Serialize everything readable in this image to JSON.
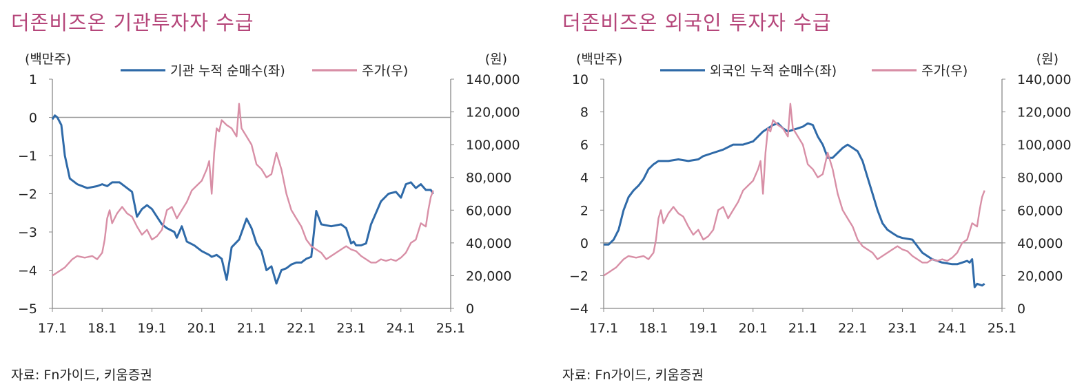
{
  "colors": {
    "title": "#b5467a",
    "flow_line": "#2f6aa8",
    "price_line": "#d88fa6",
    "axis": "#888888",
    "zero_line": "#999999"
  },
  "chart_data": [
    {
      "type": "line",
      "title": "더존비즈온 기관투자자 수급",
      "source": "자료: Fn가이드, 키움증권",
      "left_unit": "(백만주)",
      "right_unit": "(원)",
      "x_ticks": [
        "17.1",
        "18.1",
        "19.1",
        "20.1",
        "21.1",
        "22.1",
        "23.1",
        "24.1",
        "25.1"
      ],
      "xlim": [
        2017.0,
        2025.0
      ],
      "ylim_left": [
        -5,
        1
      ],
      "yticks_left": [
        "1",
        "0",
        "−1",
        "−2",
        "−3",
        "−4",
        "−5"
      ],
      "ylim_right": [
        0,
        140000
      ],
      "yticks_right": [
        "140,000",
        "120,000",
        "100,000",
        "80,000",
        "60,000",
        "40,000",
        "20,000",
        "0"
      ],
      "reference_line_left": 0,
      "legend_position": "top",
      "series": [
        {
          "name": "기관 누적 순매수(좌)",
          "axis": "left",
          "color": "#2f6aa8",
          "x": [
            2017.0,
            2017.05,
            2017.1,
            2017.18,
            2017.25,
            2017.35,
            2017.5,
            2017.7,
            2017.9,
            2018.0,
            2018.1,
            2018.2,
            2018.35,
            2018.5,
            2018.6,
            2018.7,
            2018.8,
            2018.9,
            2019.0,
            2019.1,
            2019.2,
            2019.3,
            2019.45,
            2019.5,
            2019.6,
            2019.7,
            2019.85,
            2020.0,
            2020.15,
            2020.2,
            2020.3,
            2020.4,
            2020.5,
            2020.6,
            2020.75,
            2020.9,
            2021.0,
            2021.1,
            2021.2,
            2021.3,
            2021.4,
            2021.5,
            2021.6,
            2021.7,
            2021.8,
            2021.9,
            2022.0,
            2022.05,
            2022.1,
            2022.2,
            2022.3,
            2022.4,
            2022.6,
            2022.8,
            2022.9,
            2023.0,
            2023.05,
            2023.1,
            2023.2,
            2023.3,
            2023.4,
            2023.5,
            2023.6,
            2023.75,
            2023.9,
            2024.0,
            2024.1,
            2024.2,
            2024.3,
            2024.4,
            2024.5,
            2024.6,
            2024.65
          ],
          "y": [
            -0.05,
            0.05,
            0.0,
            -0.2,
            -1.0,
            -1.6,
            -1.75,
            -1.85,
            -1.8,
            -1.75,
            -1.8,
            -1.7,
            -1.7,
            -1.85,
            -1.95,
            -2.6,
            -2.4,
            -2.3,
            -2.4,
            -2.6,
            -2.8,
            -2.9,
            -3.0,
            -3.15,
            -2.85,
            -3.25,
            -3.35,
            -3.5,
            -3.6,
            -3.65,
            -3.6,
            -3.7,
            -4.25,
            -3.4,
            -3.2,
            -2.65,
            -2.9,
            -3.3,
            -3.5,
            -4.0,
            -3.9,
            -4.35,
            -4.0,
            -3.95,
            -3.85,
            -3.8,
            -3.8,
            -3.75,
            -3.7,
            -3.65,
            -2.45,
            -2.8,
            -2.85,
            -2.8,
            -2.9,
            -3.3,
            -3.25,
            -3.35,
            -3.35,
            -3.3,
            -2.8,
            -2.5,
            -2.2,
            -2.0,
            -1.95,
            -2.1,
            -1.75,
            -1.7,
            -1.85,
            -1.75,
            -1.9,
            -1.9,
            -2.0
          ]
        },
        {
          "name": "주가(우)",
          "axis": "right",
          "color": "#d88fa6",
          "x": [
            2017.0,
            2017.1,
            2017.25,
            2017.4,
            2017.5,
            2017.65,
            2017.8,
            2017.9,
            2018.0,
            2018.05,
            2018.1,
            2018.15,
            2018.2,
            2018.3,
            2018.4,
            2018.5,
            2018.6,
            2018.7,
            2018.8,
            2018.9,
            2019.0,
            2019.1,
            2019.2,
            2019.3,
            2019.4,
            2019.5,
            2019.6,
            2019.7,
            2019.8,
            2019.9,
            2020.0,
            2020.1,
            2020.15,
            2020.2,
            2020.25,
            2020.3,
            2020.35,
            2020.4,
            2020.5,
            2020.6,
            2020.7,
            2020.75,
            2020.8,
            2020.9,
            2021.0,
            2021.1,
            2021.2,
            2021.3,
            2021.4,
            2021.5,
            2021.55,
            2021.6,
            2021.7,
            2021.8,
            2021.9,
            2022.0,
            2022.1,
            2022.2,
            2022.3,
            2022.4,
            2022.5,
            2022.6,
            2022.7,
            2022.8,
            2022.9,
            2023.0,
            2023.1,
            2023.2,
            2023.3,
            2023.4,
            2023.5,
            2023.6,
            2023.7,
            2023.8,
            2023.9,
            2024.0,
            2024.1,
            2024.2,
            2024.3,
            2024.4,
            2024.5,
            2024.55,
            2024.6,
            2024.65
          ],
          "y": [
            20000,
            22000,
            25000,
            30000,
            32000,
            31000,
            32000,
            30000,
            34000,
            42000,
            55000,
            60000,
            52000,
            58000,
            62000,
            58000,
            56000,
            50000,
            45000,
            48000,
            42000,
            44000,
            48000,
            60000,
            62000,
            55000,
            60000,
            65000,
            72000,
            75000,
            78000,
            85000,
            90000,
            70000,
            95000,
            110000,
            108000,
            115000,
            112000,
            110000,
            105000,
            125000,
            110000,
            105000,
            100000,
            88000,
            85000,
            80000,
            82000,
            95000,
            90000,
            85000,
            70000,
            60000,
            55000,
            50000,
            42000,
            38000,
            36000,
            34000,
            30000,
            32000,
            34000,
            36000,
            38000,
            36000,
            35000,
            32000,
            30000,
            28000,
            28000,
            30000,
            29000,
            30000,
            29000,
            31000,
            34000,
            40000,
            42000,
            52000,
            50000,
            60000,
            68000,
            72000
          ]
        }
      ]
    },
    {
      "type": "line",
      "title": "더존비즈온 외국인 투자자 수급",
      "source": "자료: Fn가이드, 키움증권",
      "left_unit": "(백만주)",
      "right_unit": "(원)",
      "x_ticks": [
        "17.1",
        "18.1",
        "19.1",
        "20.1",
        "21.1",
        "22.1",
        "23.1",
        "24.1",
        "25.1"
      ],
      "xlim": [
        2017.0,
        2025.0
      ],
      "ylim_left": [
        -4,
        10
      ],
      "yticks_left": [
        "10",
        "8",
        "6",
        "4",
        "2",
        "0",
        "−2",
        "−4"
      ],
      "ylim_right": [
        0,
        140000
      ],
      "yticks_right": [
        "140,000",
        "120,000",
        "100,000",
        "80,000",
        "60,000",
        "40,000",
        "20,000",
        "0"
      ],
      "reference_line_left": 0,
      "legend_position": "top",
      "series": [
        {
          "name": "외국인 누적 순매수(좌)",
          "axis": "left",
          "color": "#2f6aa8",
          "x": [
            2017.0,
            2017.1,
            2017.2,
            2017.3,
            2017.4,
            2017.5,
            2017.6,
            2017.7,
            2017.8,
            2017.9,
            2018.0,
            2018.1,
            2018.2,
            2018.3,
            2018.5,
            2018.7,
            2018.9,
            2019.0,
            2019.2,
            2019.4,
            2019.6,
            2019.8,
            2020.0,
            2020.1,
            2020.2,
            2020.3,
            2020.4,
            2020.5,
            2020.6,
            2020.7,
            2020.8,
            2020.9,
            2021.0,
            2021.1,
            2021.2,
            2021.3,
            2021.4,
            2021.5,
            2021.6,
            2021.7,
            2021.8,
            2021.9,
            2022.0,
            2022.1,
            2022.2,
            2022.3,
            2022.4,
            2022.5,
            2022.6,
            2022.7,
            2022.8,
            2022.9,
            2023.0,
            2023.2,
            2023.4,
            2023.6,
            2023.8,
            2024.0,
            2024.1,
            2024.2,
            2024.3,
            2024.35,
            2024.4,
            2024.45,
            2024.5,
            2024.6,
            2024.65
          ],
          "y": [
            -0.1,
            -0.1,
            0.2,
            0.8,
            2.0,
            2.8,
            3.2,
            3.5,
            3.9,
            4.5,
            4.8,
            5.0,
            5.0,
            5.0,
            5.1,
            5.0,
            5.1,
            5.3,
            5.5,
            5.7,
            6.0,
            6.0,
            6.2,
            6.5,
            6.8,
            7.0,
            7.2,
            7.3,
            7.0,
            6.8,
            6.9,
            7.0,
            7.1,
            7.3,
            7.2,
            6.5,
            6.0,
            5.2,
            5.2,
            5.5,
            5.8,
            6.0,
            5.8,
            5.6,
            5.0,
            4.0,
            3.0,
            2.0,
            1.2,
            0.8,
            0.6,
            0.4,
            0.3,
            0.2,
            -0.6,
            -1.0,
            -1.2,
            -1.3,
            -1.3,
            -1.2,
            -1.1,
            -1.2,
            -1.0,
            -2.7,
            -2.5,
            -2.6,
            -2.5
          ]
        },
        {
          "name": "주가(우)",
          "axis": "right",
          "color": "#d88fa6",
          "x": [
            2017.0,
            2017.1,
            2017.25,
            2017.4,
            2017.5,
            2017.65,
            2017.8,
            2017.9,
            2018.0,
            2018.05,
            2018.1,
            2018.15,
            2018.2,
            2018.3,
            2018.4,
            2018.5,
            2018.6,
            2018.7,
            2018.8,
            2018.9,
            2019.0,
            2019.1,
            2019.2,
            2019.3,
            2019.4,
            2019.5,
            2019.6,
            2019.7,
            2019.8,
            2019.9,
            2020.0,
            2020.1,
            2020.15,
            2020.2,
            2020.25,
            2020.3,
            2020.35,
            2020.4,
            2020.5,
            2020.6,
            2020.7,
            2020.75,
            2020.8,
            2020.9,
            2021.0,
            2021.1,
            2021.2,
            2021.3,
            2021.4,
            2021.5,
            2021.55,
            2021.6,
            2021.7,
            2021.8,
            2021.9,
            2022.0,
            2022.1,
            2022.2,
            2022.3,
            2022.4,
            2022.5,
            2022.6,
            2022.7,
            2022.8,
            2022.9,
            2023.0,
            2023.1,
            2023.2,
            2023.3,
            2023.4,
            2023.5,
            2023.6,
            2023.7,
            2023.8,
            2023.9,
            2024.0,
            2024.1,
            2024.2,
            2024.3,
            2024.4,
            2024.5,
            2024.55,
            2024.6,
            2024.65
          ],
          "y": [
            20000,
            22000,
            25000,
            30000,
            32000,
            31000,
            32000,
            30000,
            34000,
            42000,
            55000,
            60000,
            52000,
            58000,
            62000,
            58000,
            56000,
            50000,
            45000,
            48000,
            42000,
            44000,
            48000,
            60000,
            62000,
            55000,
            60000,
            65000,
            72000,
            75000,
            78000,
            85000,
            90000,
            70000,
            95000,
            110000,
            108000,
            115000,
            112000,
            110000,
            105000,
            125000,
            110000,
            105000,
            100000,
            88000,
            85000,
            80000,
            82000,
            95000,
            90000,
            85000,
            70000,
            60000,
            55000,
            50000,
            42000,
            38000,
            36000,
            34000,
            30000,
            32000,
            34000,
            36000,
            38000,
            36000,
            35000,
            32000,
            30000,
            28000,
            28000,
            30000,
            29000,
            30000,
            29000,
            31000,
            34000,
            40000,
            42000,
            52000,
            50000,
            60000,
            68000,
            72000
          ]
        }
      ]
    }
  ]
}
